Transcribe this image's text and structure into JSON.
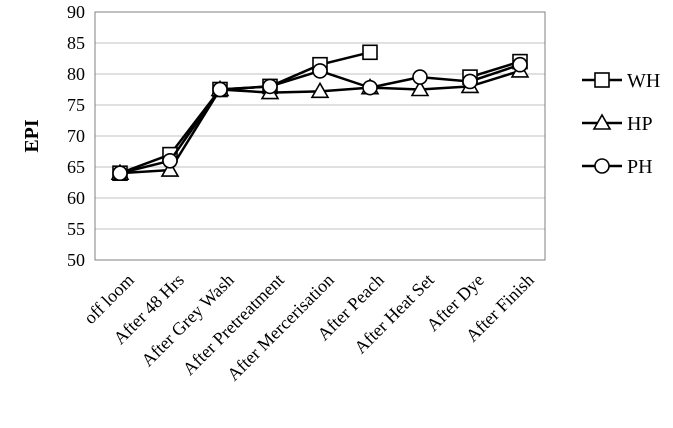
{
  "chart_data": {
    "type": "line",
    "ylabel": "EPI",
    "xlabel": "",
    "ylim": [
      50,
      90
    ],
    "yticks": [
      50,
      55,
      60,
      65,
      70,
      75,
      80,
      85,
      90
    ],
    "grid": true,
    "legend": "right",
    "categories": [
      "off loom",
      "After 48 Hrs",
      "After Grey Wash",
      "After Pretreatment",
      "After Mercerisation",
      "After Peach",
      "After Heat Set",
      "After Dye",
      "After Finish"
    ],
    "series": [
      {
        "name": "WH",
        "marker": "square",
        "values": [
          64,
          67,
          77.5,
          78,
          81.5,
          83.5,
          null,
          79.5,
          82
        ]
      },
      {
        "name": "HP",
        "marker": "triangle",
        "values": [
          64,
          64.5,
          77.5,
          77,
          77.2,
          77.8,
          77.5,
          78,
          80.5
        ]
      },
      {
        "name": "PH",
        "marker": "circle",
        "values": [
          64,
          66,
          77.5,
          78,
          80.5,
          77.8,
          79.5,
          78.8,
          81.5
        ]
      }
    ]
  }
}
